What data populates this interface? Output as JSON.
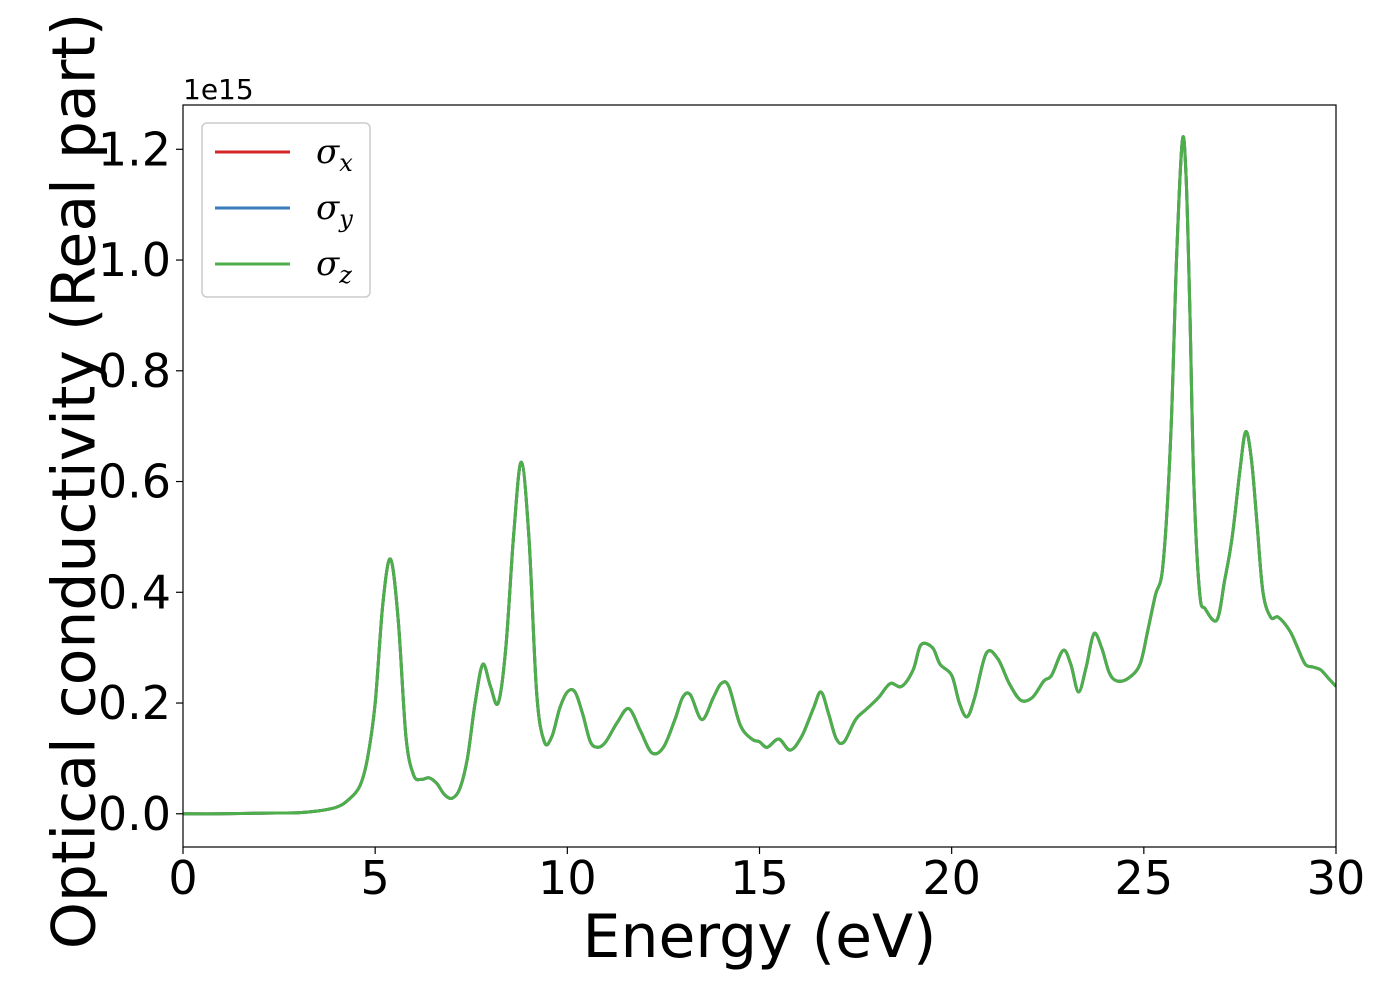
{
  "chart_data": {
    "type": "line",
    "xlabel": "Energy (eV)",
    "ylabel": "Optical conductivity (Real part)",
    "y_offset_label": "1e15",
    "xlim": [
      0,
      30
    ],
    "ylim": [
      -0.06,
      1.28
    ],
    "y_scale_factor": 1000000000000000.0,
    "x_ticks": [
      0,
      5,
      10,
      15,
      20,
      25,
      30
    ],
    "x_tick_labels": [
      "0",
      "5",
      "10",
      "15",
      "20",
      "25",
      "30"
    ],
    "y_ticks": [
      0.0,
      0.2,
      0.4,
      0.6,
      0.8,
      1.0,
      1.2
    ],
    "y_tick_labels": [
      "0.0",
      "0.2",
      "0.4",
      "0.6",
      "0.8",
      "1.0",
      "1.2"
    ],
    "grid": false,
    "legend_position": "top-left",
    "legend": [
      {
        "symbol": "σ",
        "subscript": "x",
        "color": "#d62728"
      },
      {
        "symbol": "σ",
        "subscript": "y",
        "color": "#3a7dbd"
      },
      {
        "symbol": "σ",
        "subscript": "z",
        "color": "#4daf4a"
      }
    ],
    "x": [
      0,
      1,
      2,
      3,
      3.5,
      4,
      4.3,
      4.6,
      4.8,
      5.0,
      5.2,
      5.4,
      5.6,
      5.8,
      6.0,
      6.2,
      6.4,
      6.6,
      6.8,
      7.0,
      7.2,
      7.4,
      7.6,
      7.8,
      8.0,
      8.2,
      8.4,
      8.6,
      8.8,
      9.0,
      9.2,
      9.4,
      9.6,
      9.8,
      10.0,
      10.2,
      10.4,
      10.6,
      10.8,
      11.0,
      11.3,
      11.6,
      11.9,
      12.2,
      12.5,
      12.8,
      13.0,
      13.2,
      13.5,
      13.8,
      14.0,
      14.2,
      14.5,
      14.8,
      15.0,
      15.2,
      15.5,
      15.8,
      16.1,
      16.4,
      16.6,
      16.8,
      17.0,
      17.2,
      17.5,
      17.8,
      18.1,
      18.4,
      18.7,
      19.0,
      19.2,
      19.5,
      19.7,
      20.0,
      20.2,
      20.4,
      20.6,
      20.9,
      21.2,
      21.5,
      21.8,
      22.1,
      22.4,
      22.6,
      22.9,
      23.1,
      23.3,
      23.5,
      23.7,
      23.9,
      24.1,
      24.3,
      24.6,
      24.9,
      25.1,
      25.3,
      25.5,
      25.7,
      25.85,
      26.0,
      26.1,
      26.2,
      26.3,
      26.45,
      26.6,
      26.9,
      27.1,
      27.3,
      27.5,
      27.65,
      27.8,
      27.95,
      28.1,
      28.3,
      28.5,
      28.8,
      29.0,
      29.2,
      29.4,
      29.6,
      29.8,
      30.0
    ],
    "series": [
      {
        "values": [
          0,
          0,
          0.001,
          0.002,
          0.005,
          0.012,
          0.025,
          0.05,
          0.1,
          0.2,
          0.38,
          0.46,
          0.35,
          0.14,
          0.07,
          0.062,
          0.065,
          0.055,
          0.035,
          0.028,
          0.045,
          0.1,
          0.2,
          0.27,
          0.23,
          0.2,
          0.3,
          0.5,
          0.635,
          0.5,
          0.22,
          0.13,
          0.14,
          0.19,
          0.22,
          0.22,
          0.18,
          0.13,
          0.12,
          0.13,
          0.165,
          0.19,
          0.15,
          0.11,
          0.12,
          0.17,
          0.21,
          0.215,
          0.17,
          0.21,
          0.235,
          0.23,
          0.16,
          0.135,
          0.13,
          0.12,
          0.135,
          0.115,
          0.14,
          0.19,
          0.22,
          0.18,
          0.135,
          0.13,
          0.17,
          0.19,
          0.21,
          0.235,
          0.23,
          0.26,
          0.305,
          0.3,
          0.27,
          0.25,
          0.2,
          0.175,
          0.21,
          0.29,
          0.28,
          0.235,
          0.205,
          0.21,
          0.24,
          0.25,
          0.295,
          0.27,
          0.22,
          0.265,
          0.325,
          0.3,
          0.255,
          0.24,
          0.245,
          0.27,
          0.33,
          0.395,
          0.45,
          0.68,
          1.0,
          1.215,
          1.15,
          0.9,
          0.6,
          0.4,
          0.37,
          0.35,
          0.42,
          0.5,
          0.62,
          0.69,
          0.64,
          0.52,
          0.4,
          0.355,
          0.355,
          0.33,
          0.3,
          0.27,
          0.265,
          0.26,
          0.245,
          0.23
        ]
      },
      {
        "values": [
          0,
          0,
          0.001,
          0.002,
          0.005,
          0.012,
          0.025,
          0.05,
          0.1,
          0.2,
          0.38,
          0.46,
          0.35,
          0.14,
          0.07,
          0.062,
          0.065,
          0.055,
          0.035,
          0.028,
          0.045,
          0.1,
          0.2,
          0.27,
          0.23,
          0.2,
          0.3,
          0.5,
          0.635,
          0.5,
          0.22,
          0.13,
          0.14,
          0.19,
          0.22,
          0.22,
          0.18,
          0.13,
          0.12,
          0.13,
          0.165,
          0.19,
          0.15,
          0.11,
          0.12,
          0.17,
          0.21,
          0.215,
          0.17,
          0.21,
          0.235,
          0.23,
          0.16,
          0.135,
          0.13,
          0.12,
          0.135,
          0.115,
          0.14,
          0.19,
          0.22,
          0.18,
          0.135,
          0.13,
          0.17,
          0.19,
          0.21,
          0.235,
          0.23,
          0.26,
          0.305,
          0.3,
          0.27,
          0.25,
          0.2,
          0.175,
          0.21,
          0.29,
          0.28,
          0.235,
          0.205,
          0.21,
          0.24,
          0.25,
          0.295,
          0.27,
          0.22,
          0.265,
          0.325,
          0.3,
          0.255,
          0.24,
          0.245,
          0.27,
          0.33,
          0.395,
          0.45,
          0.68,
          1.0,
          1.215,
          1.15,
          0.9,
          0.6,
          0.4,
          0.37,
          0.35,
          0.42,
          0.5,
          0.62,
          0.69,
          0.64,
          0.52,
          0.4,
          0.355,
          0.355,
          0.33,
          0.3,
          0.27,
          0.265,
          0.26,
          0.245,
          0.23
        ]
      },
      {
        "values": [
          0,
          0,
          0.001,
          0.002,
          0.005,
          0.012,
          0.025,
          0.05,
          0.1,
          0.2,
          0.38,
          0.46,
          0.35,
          0.14,
          0.07,
          0.062,
          0.065,
          0.055,
          0.035,
          0.028,
          0.045,
          0.1,
          0.2,
          0.27,
          0.23,
          0.2,
          0.3,
          0.5,
          0.635,
          0.5,
          0.22,
          0.13,
          0.14,
          0.19,
          0.22,
          0.22,
          0.18,
          0.13,
          0.12,
          0.13,
          0.165,
          0.19,
          0.15,
          0.11,
          0.12,
          0.17,
          0.21,
          0.215,
          0.17,
          0.21,
          0.235,
          0.23,
          0.16,
          0.135,
          0.13,
          0.12,
          0.135,
          0.115,
          0.14,
          0.19,
          0.22,
          0.18,
          0.135,
          0.13,
          0.17,
          0.19,
          0.21,
          0.235,
          0.23,
          0.26,
          0.305,
          0.3,
          0.27,
          0.25,
          0.2,
          0.175,
          0.21,
          0.29,
          0.28,
          0.235,
          0.205,
          0.21,
          0.24,
          0.25,
          0.295,
          0.27,
          0.22,
          0.265,
          0.325,
          0.3,
          0.255,
          0.24,
          0.245,
          0.27,
          0.33,
          0.395,
          0.45,
          0.68,
          1.0,
          1.215,
          1.15,
          0.9,
          0.6,
          0.4,
          0.37,
          0.35,
          0.42,
          0.5,
          0.62,
          0.69,
          0.64,
          0.52,
          0.4,
          0.355,
          0.355,
          0.33,
          0.3,
          0.27,
          0.265,
          0.26,
          0.245,
          0.23
        ]
      }
    ]
  }
}
